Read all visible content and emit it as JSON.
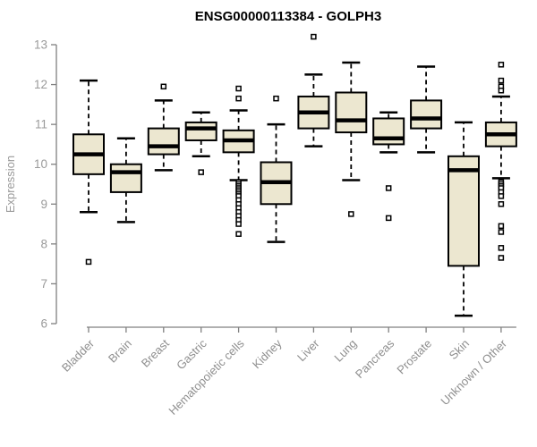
{
  "page": {
    "background": "#ffffff"
  },
  "chart_data": {
    "type": "boxplot",
    "title": "ENSG00000113384 - GOLPH3",
    "ylabel": "Expression",
    "xlabel": "",
    "ylim": [
      6,
      13
    ],
    "yticks": [
      6,
      7,
      8,
      9,
      10,
      11,
      12,
      13
    ],
    "grid": false,
    "legend": false,
    "colors": {
      "box_fill": "#ece7d0",
      "box_stroke": "#000000",
      "median": "#000000",
      "whisker": "#000000",
      "axis": "#808080",
      "tick_label": "#9a9a9a",
      "title": "#000000"
    },
    "categories": [
      "Bladder",
      "Brain",
      "Breast",
      "Gastric",
      "Hematopoietic cells",
      "Kidney",
      "Liver",
      "Lung",
      "Pancreas",
      "Prostate",
      "Skin",
      "Unknown / Other"
    ],
    "series": [
      {
        "label": "Bladder",
        "low": 8.8,
        "q1": 9.75,
        "median": 10.25,
        "q3": 10.75,
        "high": 12.1,
        "outliers": [
          7.55
        ]
      },
      {
        "label": "Brain",
        "low": 8.55,
        "q1": 9.3,
        "median": 9.8,
        "q3": 10.0,
        "high": 10.65,
        "outliers": []
      },
      {
        "label": "Breast",
        "low": 9.85,
        "q1": 10.25,
        "median": 10.45,
        "q3": 10.9,
        "high": 11.6,
        "outliers": [
          11.95
        ]
      },
      {
        "label": "Gastric",
        "low": 10.2,
        "q1": 10.6,
        "median": 10.9,
        "q3": 11.05,
        "high": 11.3,
        "outliers": [
          9.8
        ]
      },
      {
        "label": "Hematopoietic cells",
        "low": 9.6,
        "q1": 10.3,
        "median": 10.6,
        "q3": 10.85,
        "high": 11.35,
        "outliers": [
          11.9,
          11.65,
          9.55,
          9.5,
          9.45,
          9.4,
          9.35,
          9.3,
          9.25,
          9.2,
          9.1,
          9.0,
          8.9,
          8.8,
          8.7,
          8.6,
          8.5,
          8.25
        ]
      },
      {
        "label": "Kidney",
        "low": 8.05,
        "q1": 9.0,
        "median": 9.55,
        "q3": 10.05,
        "high": 11.0,
        "outliers": [
          11.65
        ]
      },
      {
        "label": "Liver",
        "low": 10.45,
        "q1": 10.9,
        "median": 11.3,
        "q3": 11.7,
        "high": 12.25,
        "outliers": [
          13.2
        ]
      },
      {
        "label": "Lung",
        "low": 9.6,
        "q1": 10.8,
        "median": 11.1,
        "q3": 11.8,
        "high": 12.55,
        "outliers": [
          8.75
        ]
      },
      {
        "label": "Pancreas",
        "low": 10.3,
        "q1": 10.5,
        "median": 10.65,
        "q3": 11.15,
        "high": 11.3,
        "outliers": [
          9.4,
          8.65
        ]
      },
      {
        "label": "Prostate",
        "low": 10.3,
        "q1": 10.9,
        "median": 11.15,
        "q3": 11.6,
        "high": 12.45,
        "outliers": []
      },
      {
        "label": "Skin",
        "low": 6.2,
        "q1": 7.45,
        "median": 9.85,
        "q3": 10.2,
        "high": 11.05,
        "outliers": []
      },
      {
        "label": "Unknown / Other",
        "low": 9.65,
        "q1": 10.45,
        "median": 10.75,
        "q3": 11.05,
        "high": 11.7,
        "outliers": [
          12.5,
          12.1,
          11.95,
          11.85,
          9.55,
          9.5,
          9.45,
          9.4,
          9.3,
          9.2,
          9.0,
          8.45,
          8.3,
          7.9,
          7.65
        ]
      }
    ]
  }
}
